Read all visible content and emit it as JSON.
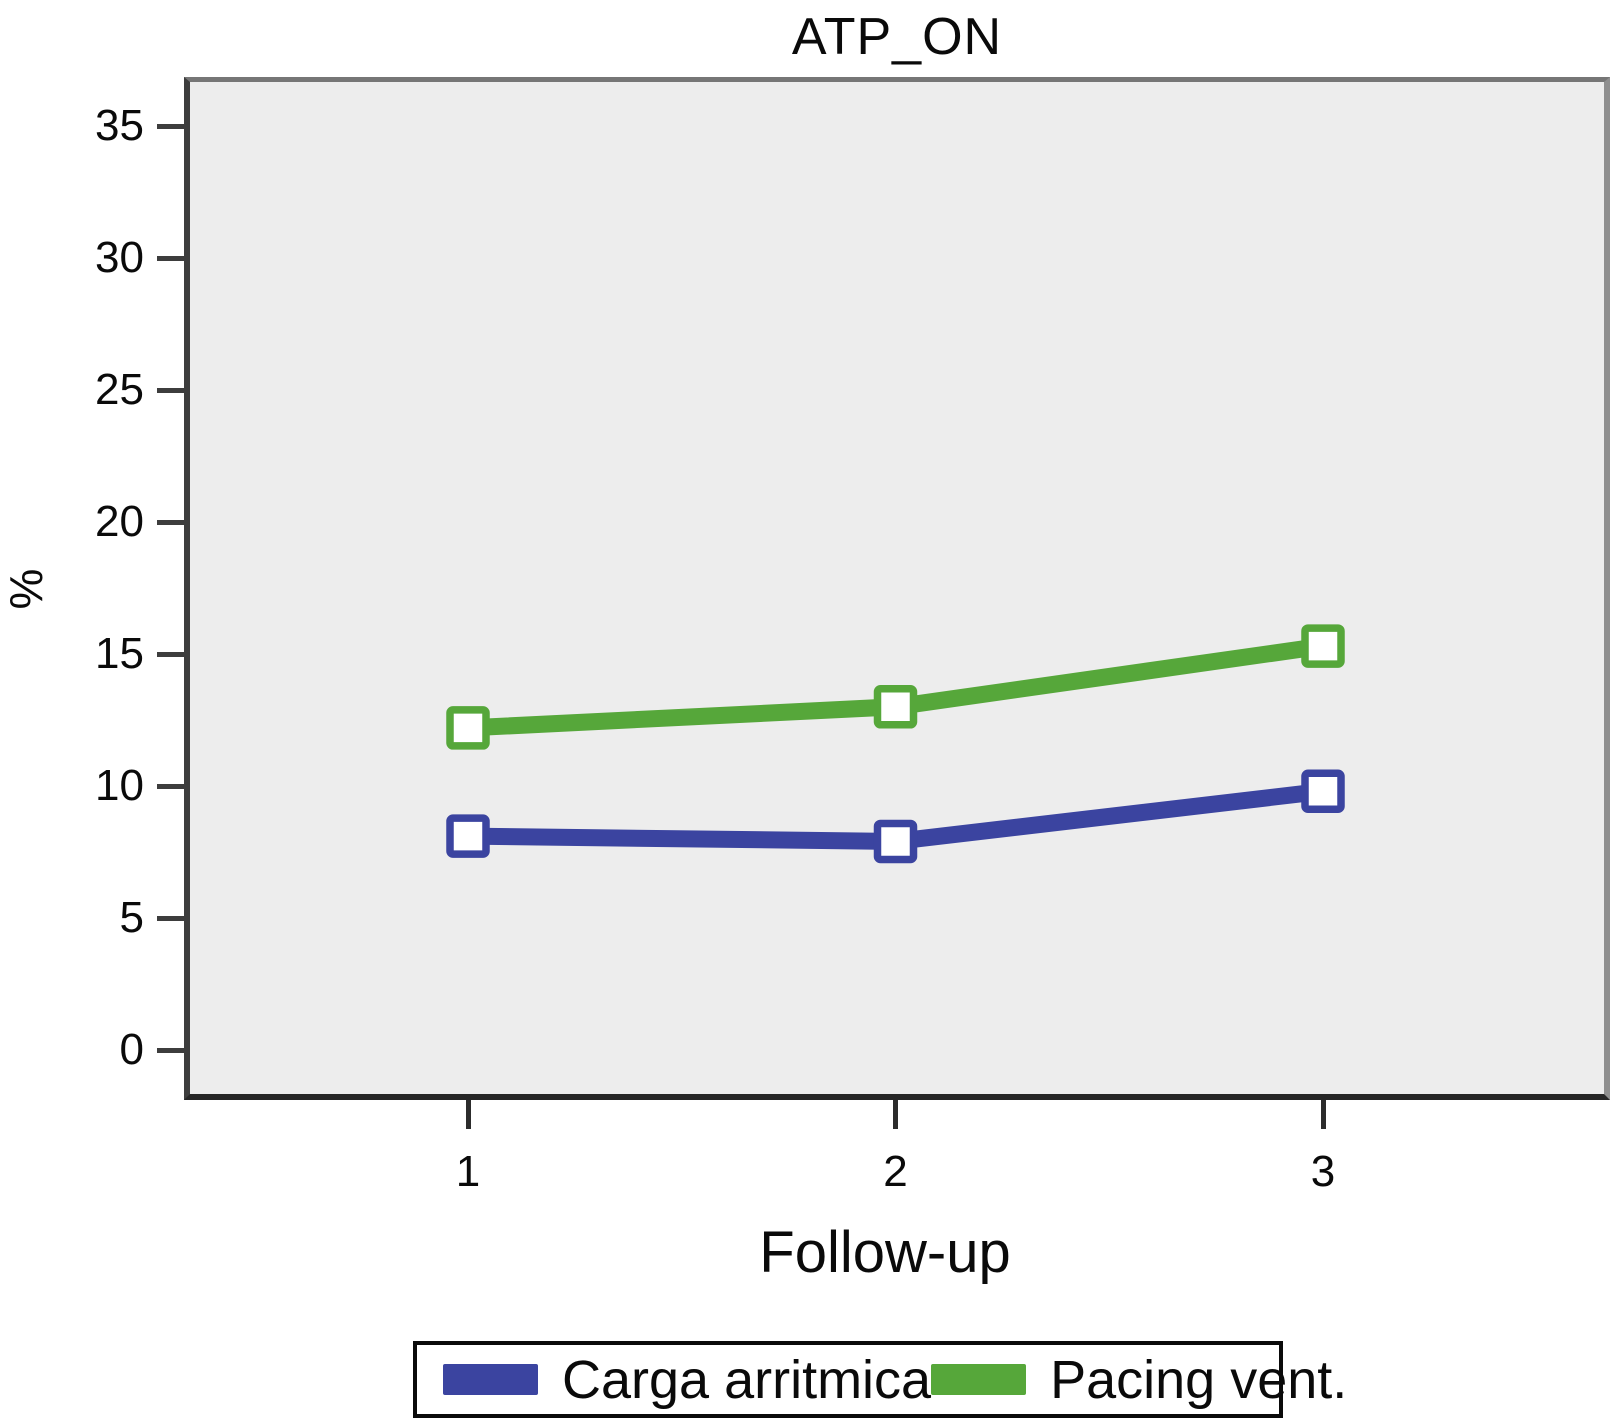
{
  "chart_data": {
    "type": "line",
    "title": "ATP_ON",
    "xlabel": "Follow-up",
    "ylabel": "%",
    "categories": [
      "1",
      "2",
      "3"
    ],
    "series": [
      {
        "name": "Carga arritmica",
        "color": "#3B44A0",
        "values": [
          8.1,
          7.9,
          9.8
        ]
      },
      {
        "name": "Pacing vent.",
        "color": "#56A73A",
        "values": [
          12.2,
          13.0,
          15.3
        ]
      }
    ],
    "ylim": [
      0,
      35
    ],
    "yticks": [
      0,
      5,
      10,
      15,
      20,
      25,
      30,
      35
    ],
    "grid": false,
    "legend_position": "bottom",
    "marker": "square",
    "plot_background": "#ededed",
    "axis_color": "#3d3d3d"
  }
}
